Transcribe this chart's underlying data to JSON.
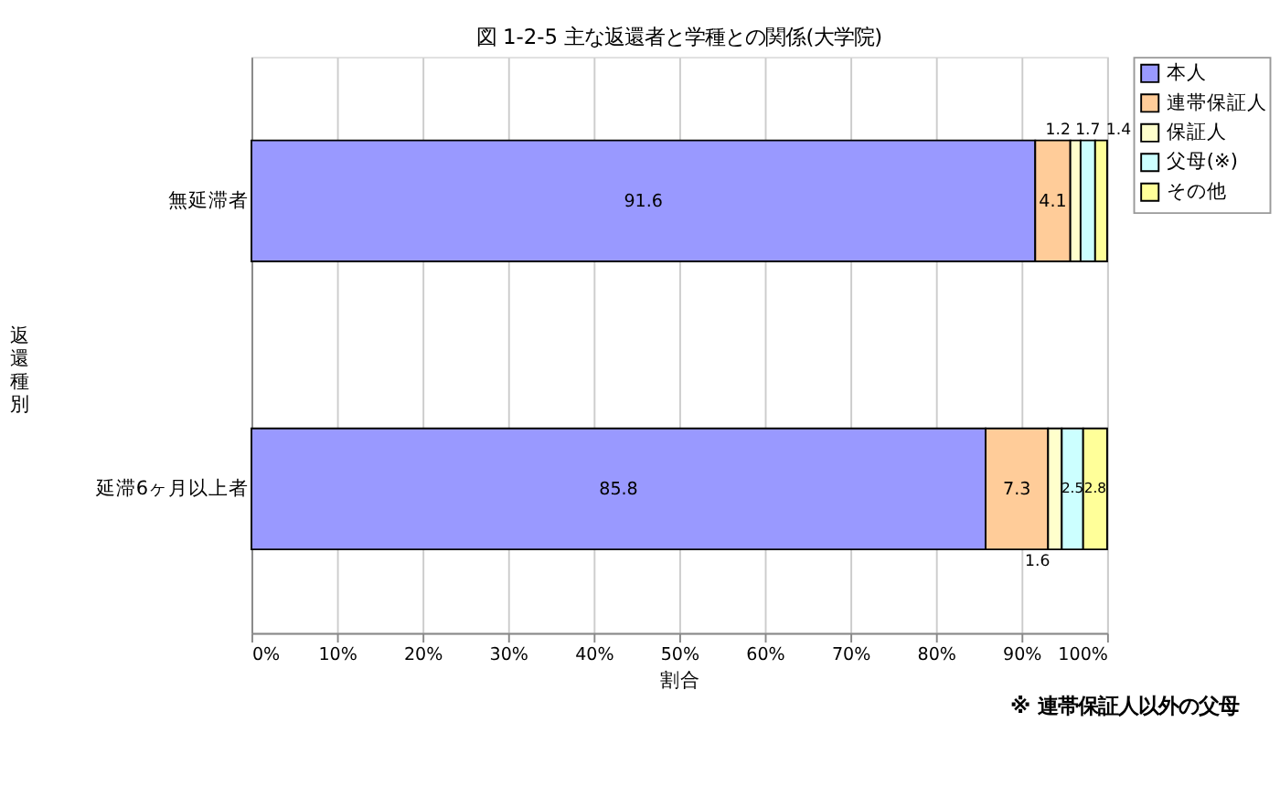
{
  "chart_data": {
    "type": "bar",
    "orientation": "horizontal",
    "stacked": true,
    "title": "図 1-2-5  主な返還者と学種との関係(大学院)",
    "xlabel": "割合",
    "ylabel": "返還種別",
    "categories": [
      "無延滞者",
      "延滞6ヶ月以上者"
    ],
    "series": [
      {
        "name": "本人",
        "color": "#9999ff",
        "values": [
          91.6,
          85.8
        ]
      },
      {
        "name": "連帯保証人",
        "color": "#ffcc99",
        "values": [
          4.1,
          7.3
        ]
      },
      {
        "name": "保証人",
        "color": "#ffffcc",
        "values": [
          1.2,
          1.6
        ]
      },
      {
        "name": "父母(※)",
        "color": "#ccffff",
        "values": [
          1.7,
          2.5
        ]
      },
      {
        "name": "その他",
        "color": "#ffff99",
        "values": [
          1.4,
          2.8
        ]
      }
    ],
    "xlim": [
      0,
      100
    ],
    "xticks": [
      {
        "value": 0,
        "label": "0%"
      },
      {
        "value": 10,
        "label": "10%"
      },
      {
        "value": 20,
        "label": "20%"
      },
      {
        "value": 30,
        "label": "30%"
      },
      {
        "value": 40,
        "label": "40%"
      },
      {
        "value": 50,
        "label": "50%"
      },
      {
        "value": 60,
        "label": "60%"
      },
      {
        "value": 70,
        "label": "70%"
      },
      {
        "value": 80,
        "label": "80%"
      },
      {
        "value": 90,
        "label": "90%"
      },
      {
        "value": 100,
        "label": "100%"
      }
    ],
    "grid": "x",
    "legend": "right",
    "data_labels": true,
    "annotations": [
      "※ 連帯保証人以外の父母"
    ]
  }
}
